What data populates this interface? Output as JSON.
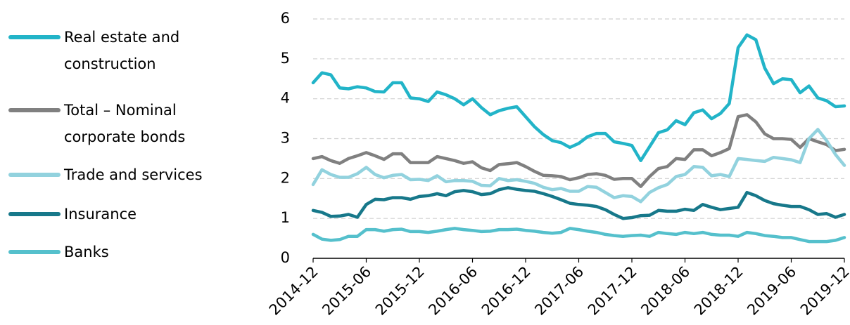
{
  "chart_data": {
    "type": "line",
    "categories": [
      "2014-12",
      null,
      null,
      null,
      null,
      null,
      "2015-06",
      null,
      null,
      null,
      null,
      null,
      "2015-12",
      null,
      null,
      null,
      null,
      null,
      "2016-06",
      null,
      null,
      null,
      null,
      null,
      "2016-12",
      null,
      null,
      null,
      null,
      null,
      "2017-06",
      null,
      null,
      null,
      null,
      null,
      "2017-12",
      null,
      null,
      null,
      null,
      null,
      "2018-06",
      null,
      null,
      null,
      null,
      null,
      "2018-12",
      null,
      null,
      null,
      null,
      null,
      "2019-06",
      null,
      null,
      null,
      null,
      null,
      "2019-12"
    ],
    "ylim": [
      0,
      6
    ],
    "yticks": [
      0,
      1,
      2,
      3,
      4,
      5,
      6
    ],
    "grid": true,
    "legend": "left",
    "series": [
      {
        "name": "Real estate and construction",
        "color": "#22b4c8",
        "values": [
          4.4,
          4.65,
          4.6,
          4.27,
          4.25,
          4.3,
          4.27,
          4.18,
          4.17,
          4.4,
          4.4,
          4.02,
          4.0,
          3.93,
          4.17,
          4.1,
          4.0,
          3.85,
          4.0,
          3.78,
          3.6,
          3.7,
          3.76,
          3.8,
          3.55,
          3.3,
          3.1,
          2.95,
          2.9,
          2.78,
          2.88,
          3.05,
          3.13,
          3.13,
          2.92,
          2.88,
          2.83,
          2.45,
          2.8,
          3.15,
          3.22,
          3.45,
          3.35,
          3.65,
          3.72,
          3.5,
          3.63,
          3.88,
          5.28,
          5.6,
          5.48,
          4.77,
          4.38,
          4.5,
          4.48,
          4.15,
          4.32,
          4.02,
          3.95,
          3.8,
          3.82
        ]
      },
      {
        "name": "Total – Nominal corporate bonds",
        "color": "#808080",
        "values": [
          2.5,
          2.55,
          2.45,
          2.38,
          2.5,
          2.57,
          2.65,
          2.57,
          2.48,
          2.62,
          2.62,
          2.4,
          2.4,
          2.4,
          2.55,
          2.5,
          2.45,
          2.38,
          2.42,
          2.27,
          2.2,
          2.35,
          2.37,
          2.4,
          2.3,
          2.18,
          2.08,
          2.07,
          2.05,
          1.97,
          2.02,
          2.1,
          2.12,
          2.08,
          1.98,
          2.0,
          2.0,
          1.8,
          2.05,
          2.25,
          2.3,
          2.5,
          2.48,
          2.72,
          2.72,
          2.57,
          2.65,
          2.75,
          3.55,
          3.6,
          3.42,
          3.12,
          3.0,
          3.0,
          2.98,
          2.78,
          3.0,
          2.92,
          2.85,
          2.7,
          2.73
        ]
      },
      {
        "name": "Trade and services",
        "color": "#92d2de",
        "values": [
          1.85,
          2.22,
          2.1,
          2.03,
          2.03,
          2.12,
          2.28,
          2.1,
          2.02,
          2.08,
          2.1,
          1.97,
          1.98,
          1.95,
          2.07,
          1.92,
          1.95,
          1.95,
          1.93,
          1.83,
          1.82,
          2.0,
          1.95,
          1.97,
          1.93,
          1.88,
          1.78,
          1.72,
          1.75,
          1.68,
          1.68,
          1.8,
          1.78,
          1.65,
          1.52,
          1.57,
          1.55,
          1.42,
          1.65,
          1.77,
          1.85,
          2.05,
          2.1,
          2.3,
          2.28,
          2.07,
          2.1,
          2.05,
          2.5,
          2.48,
          2.45,
          2.43,
          2.53,
          2.5,
          2.47,
          2.4,
          3.0,
          3.23,
          2.95,
          2.6,
          2.33
        ]
      },
      {
        "name": "Insurance",
        "color": "#17788a",
        "values": [
          1.2,
          1.15,
          1.05,
          1.06,
          1.1,
          1.03,
          1.35,
          1.48,
          1.47,
          1.52,
          1.52,
          1.48,
          1.55,
          1.57,
          1.62,
          1.57,
          1.67,
          1.7,
          1.67,
          1.6,
          1.62,
          1.72,
          1.77,
          1.73,
          1.7,
          1.68,
          1.62,
          1.55,
          1.47,
          1.38,
          1.35,
          1.33,
          1.3,
          1.22,
          1.1,
          1.0,
          1.02,
          1.07,
          1.08,
          1.2,
          1.18,
          1.18,
          1.23,
          1.2,
          1.35,
          1.28,
          1.22,
          1.25,
          1.28,
          1.65,
          1.57,
          1.45,
          1.37,
          1.33,
          1.3,
          1.3,
          1.22,
          1.1,
          1.12,
          1.03,
          1.1
        ]
      },
      {
        "name": "Banks",
        "color": "#55c0cc",
        "values": [
          0.6,
          0.48,
          0.45,
          0.47,
          0.55,
          0.55,
          0.72,
          0.72,
          0.68,
          0.72,
          0.73,
          0.67,
          0.67,
          0.65,
          0.68,
          0.72,
          0.75,
          0.72,
          0.7,
          0.67,
          0.68,
          0.72,
          0.72,
          0.73,
          0.7,
          0.68,
          0.65,
          0.63,
          0.65,
          0.75,
          0.72,
          0.68,
          0.65,
          0.6,
          0.57,
          0.55,
          0.57,
          0.58,
          0.55,
          0.65,
          0.62,
          0.6,
          0.65,
          0.62,
          0.65,
          0.6,
          0.58,
          0.58,
          0.55,
          0.65,
          0.62,
          0.57,
          0.55,
          0.52,
          0.52,
          0.47,
          0.42,
          0.42,
          0.42,
          0.45,
          0.52
        ]
      }
    ]
  }
}
